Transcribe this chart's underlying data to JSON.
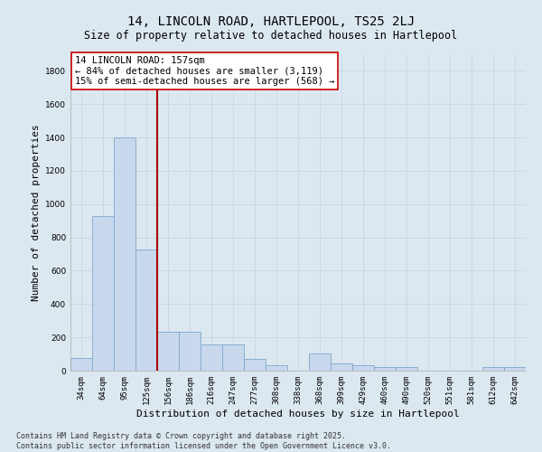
{
  "title": "14, LINCOLN ROAD, HARTLEPOOL, TS25 2LJ",
  "subtitle": "Size of property relative to detached houses in Hartlepool",
  "xlabel": "Distribution of detached houses by size in Hartlepool",
  "ylabel": "Number of detached properties",
  "categories": [
    "34sqm",
    "64sqm",
    "95sqm",
    "125sqm",
    "156sqm",
    "186sqm",
    "216sqm",
    "247sqm",
    "277sqm",
    "308sqm",
    "338sqm",
    "368sqm",
    "399sqm",
    "429sqm",
    "460sqm",
    "490sqm",
    "520sqm",
    "551sqm",
    "581sqm",
    "612sqm",
    "642sqm"
  ],
  "values": [
    75,
    930,
    1400,
    730,
    235,
    235,
    155,
    155,
    70,
    30,
    0,
    105,
    45,
    30,
    20,
    20,
    0,
    0,
    0,
    20,
    20
  ],
  "bar_color": "#c8d8ed",
  "bar_edge_color": "#7fa8cc",
  "vline_x_idx": 3.5,
  "vline_color": "#aa0000",
  "annotation_text": "14 LINCOLN ROAD: 157sqm\n← 84% of detached houses are smaller (3,119)\n15% of semi-detached houses are larger (568) →",
  "annotation_box_facecolor": "#ffffff",
  "annotation_box_edgecolor": "#cc0000",
  "annotation_fontsize": 7.5,
  "ylim": [
    0,
    1900
  ],
  "yticks": [
    0,
    200,
    400,
    600,
    800,
    1000,
    1200,
    1400,
    1600,
    1800
  ],
  "grid_color": "#c8d4e8",
  "bg_color": "#dce8f0",
  "footnote": "Contains HM Land Registry data © Crown copyright and database right 2025.\nContains public sector information licensed under the Open Government Licence v3.0.",
  "title_fontsize": 10,
  "subtitle_fontsize": 8.5,
  "xlabel_fontsize": 8,
  "ylabel_fontsize": 8,
  "tick_fontsize": 6.5,
  "footnote_fontsize": 6
}
